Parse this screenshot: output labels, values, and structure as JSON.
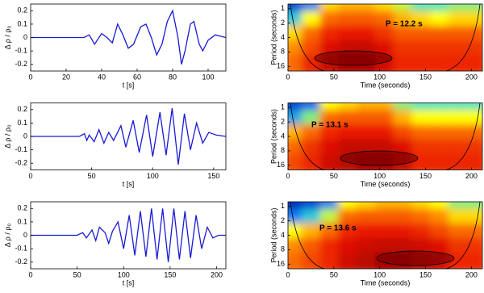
{
  "chart_data": [
    {
      "type": "line",
      "ylabel": "Δ ρ / ρ₀",
      "xlabel": "t [s]",
      "color": "#1a1ad6",
      "x": [
        0,
        30,
        33,
        36,
        40,
        43,
        46,
        49,
        52,
        55,
        58,
        62,
        65,
        68,
        71,
        74,
        77,
        80,
        83,
        85,
        87,
        90,
        92,
        95,
        97,
        100,
        104,
        110
      ],
      "values": [
        0,
        0,
        0.02,
        -0.05,
        0.03,
        0,
        -0.04,
        0.1,
        0.02,
        -0.08,
        -0.05,
        0.08,
        0.1,
        0,
        -0.13,
        -0.05,
        0.12,
        0.2,
        0,
        -0.2,
        -0.1,
        0.1,
        0.12,
        -0.05,
        -0.1,
        -0.02,
        0.02,
        0
      ],
      "xlim": [
        0,
        110
      ],
      "xticks": [
        0,
        20,
        40,
        60,
        80,
        100
      ],
      "ylim": [
        -0.25,
        0.25
      ],
      "yticks": [
        -0.2,
        -0.1,
        0,
        0.1,
        0.2
      ]
    },
    {
      "type": "heatmap",
      "ylabel": "Period (seconds)",
      "xlabel": "Time (seconds)",
      "annotation": "P = 12.2 s",
      "x": [
        10,
        30,
        50,
        70,
        90,
        110,
        130,
        150,
        170,
        190,
        210
      ],
      "y": [
        1,
        2,
        4,
        8,
        16
      ],
      "z": [
        [
          0.1,
          0.2,
          0.55,
          0.6,
          0.6,
          0.55,
          0.45,
          0.35,
          0.35,
          0.4,
          0.4
        ],
        [
          0.3,
          0.5,
          0.7,
          0.72,
          0.72,
          0.7,
          0.6,
          0.55,
          0.5,
          0.55,
          0.55
        ],
        [
          0.55,
          0.7,
          0.8,
          0.82,
          0.82,
          0.78,
          0.72,
          0.72,
          0.72,
          0.72,
          0.72
        ],
        [
          0.65,
          0.75,
          0.85,
          0.9,
          0.9,
          0.85,
          0.78,
          0.78,
          0.78,
          0.78,
          0.78
        ],
        [
          0.7,
          0.8,
          0.9,
          0.95,
          0.95,
          0.88,
          0.8,
          0.8,
          0.8,
          0.8,
          0.8
        ]
      ],
      "zlim": [
        0,
        1
      ],
      "colorscale": [
        "#00008f",
        "#0060ff",
        "#30e0d0",
        "#ffff00",
        "#ff8000",
        "#e81000",
        "#900000"
      ],
      "xlim": [
        0,
        212
      ],
      "xticks": [
        0,
        50,
        100,
        150,
        200
      ],
      "ylim": [
        0.8,
        20
      ],
      "yticks": [
        1,
        2,
        4,
        8,
        16
      ],
      "log_y": true
    },
    {
      "type": "line",
      "ylabel": "Δ ρ / ρ₀",
      "xlabel": "t [s]",
      "color": "#1a1ad6",
      "x": [
        0,
        40,
        44,
        46,
        48,
        52,
        56,
        60,
        64,
        68,
        74,
        78,
        84,
        89,
        95,
        100,
        106,
        111,
        116,
        121,
        126,
        131,
        136,
        141,
        146,
        152,
        160
      ],
      "values": [
        0,
        0,
        0.02,
        -0.03,
        0.01,
        -0.04,
        0.05,
        -0.05,
        0.03,
        -0.03,
        0.08,
        -0.08,
        0.12,
        -0.12,
        0.16,
        -0.15,
        0.18,
        -0.14,
        0.21,
        -0.21,
        0.17,
        -0.1,
        0.1,
        -0.05,
        0.03,
        0.01,
        0
      ],
      "xlim": [
        0,
        160
      ],
      "xticks": [
        0,
        50,
        100,
        150
      ],
      "ylim": [
        -0.25,
        0.25
      ],
      "yticks": [
        -0.2,
        -0.1,
        0,
        0.1,
        0.2
      ]
    },
    {
      "type": "heatmap",
      "ylabel": "Period (seconds)",
      "xlabel": "Time (seconds)",
      "annotation": "P = 13.1 s",
      "x": [
        10,
        30,
        50,
        70,
        90,
        110,
        130,
        150,
        170,
        190,
        210
      ],
      "y": [
        1,
        2,
        4,
        8,
        16
      ],
      "z": [
        [
          0.1,
          0.15,
          0.5,
          0.55,
          0.6,
          0.6,
          0.4,
          0.35,
          0.35,
          0.35,
          0.35
        ],
        [
          0.25,
          0.4,
          0.7,
          0.72,
          0.72,
          0.72,
          0.6,
          0.5,
          0.5,
          0.5,
          0.5
        ],
        [
          0.6,
          0.7,
          0.8,
          0.82,
          0.82,
          0.82,
          0.75,
          0.7,
          0.7,
          0.7,
          0.7
        ],
        [
          0.7,
          0.78,
          0.85,
          0.9,
          0.9,
          0.9,
          0.85,
          0.78,
          0.78,
          0.78,
          0.78
        ],
        [
          0.75,
          0.8,
          0.88,
          0.92,
          0.95,
          0.95,
          0.9,
          0.8,
          0.8,
          0.8,
          0.8
        ]
      ],
      "zlim": [
        0,
        1
      ],
      "colorscale": [
        "#00008f",
        "#0060ff",
        "#30e0d0",
        "#ffff00",
        "#ff8000",
        "#e81000",
        "#900000"
      ],
      "xlim": [
        0,
        212
      ],
      "xticks": [
        0,
        50,
        100,
        150,
        200
      ],
      "ylim": [
        0.8,
        20
      ],
      "yticks": [
        1,
        2,
        4,
        8,
        16
      ],
      "log_y": true
    },
    {
      "type": "line",
      "ylabel": "Δ ρ / ρ₀",
      "xlabel": "t [s]",
      "color": "#1a1ad6",
      "x": [
        0,
        50,
        56,
        60,
        66,
        70,
        74,
        80,
        84,
        88,
        94,
        100,
        106,
        112,
        118,
        124,
        130,
        136,
        142,
        148,
        154,
        160,
        166,
        172,
        178,
        184,
        190,
        196,
        202,
        210
      ],
      "values": [
        0,
        0,
        0.02,
        -0.02,
        0.04,
        -0.04,
        0.06,
        0.02,
        -0.06,
        0.03,
        0.1,
        -0.1,
        0.15,
        -0.15,
        0.18,
        -0.16,
        0.2,
        -0.18,
        0.2,
        -0.2,
        0.2,
        -0.18,
        0.18,
        -0.17,
        0.15,
        -0.1,
        0.06,
        -0.02,
        0,
        0
      ],
      "xlim": [
        0,
        210
      ],
      "xticks": [
        0,
        50,
        100,
        150,
        200
      ],
      "ylim": [
        -0.25,
        0.25
      ],
      "yticks": [
        -0.2,
        -0.1,
        0,
        0.1,
        0.2
      ]
    },
    {
      "type": "heatmap",
      "ylabel": "Period (seconds)",
      "xlabel": "Time (seconds)",
      "annotation": "P = 13.6 s",
      "x": [
        10,
        30,
        50,
        70,
        90,
        110,
        130,
        150,
        170,
        190,
        210
      ],
      "y": [
        1,
        2,
        4,
        8,
        16
      ],
      "z": [
        [
          0.05,
          0.1,
          0.2,
          0.5,
          0.55,
          0.6,
          0.6,
          0.55,
          0.5,
          0.4,
          0.4
        ],
        [
          0.2,
          0.3,
          0.45,
          0.7,
          0.72,
          0.72,
          0.72,
          0.7,
          0.65,
          0.55,
          0.55
        ],
        [
          0.5,
          0.6,
          0.7,
          0.8,
          0.82,
          0.82,
          0.82,
          0.8,
          0.75,
          0.7,
          0.7
        ],
        [
          0.65,
          0.72,
          0.8,
          0.85,
          0.88,
          0.9,
          0.9,
          0.88,
          0.85,
          0.78,
          0.78
        ],
        [
          0.7,
          0.75,
          0.8,
          0.88,
          0.92,
          0.95,
          0.95,
          0.92,
          0.88,
          0.8,
          0.8
        ]
      ],
      "zlim": [
        0,
        1
      ],
      "colorscale": [
        "#00008f",
        "#0060ff",
        "#30e0d0",
        "#ffff00",
        "#ff8000",
        "#e81000",
        "#900000"
      ],
      "xlim": [
        0,
        212
      ],
      "xticks": [
        0,
        50,
        100,
        150,
        200
      ],
      "ylim": [
        0.8,
        20
      ],
      "yticks": [
        1,
        2,
        4,
        8,
        16
      ],
      "log_y": true
    }
  ]
}
